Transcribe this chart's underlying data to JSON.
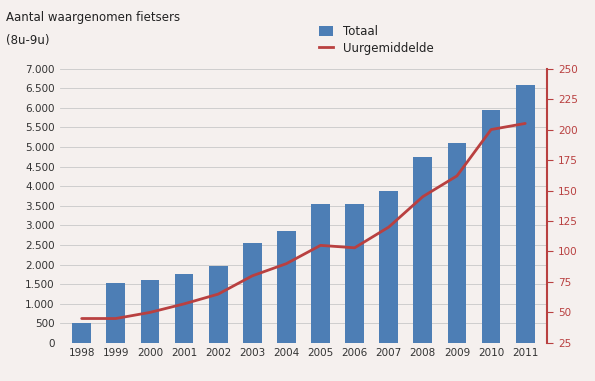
{
  "years": [
    1998,
    1999,
    2000,
    2001,
    2002,
    2003,
    2004,
    2005,
    2006,
    2007,
    2008,
    2009,
    2010,
    2011
  ],
  "totaal": [
    500,
    1530,
    1600,
    1750,
    1950,
    2550,
    2850,
    3550,
    3550,
    3880,
    4750,
    5100,
    5950,
    6580
  ],
  "uurgemiddelde": [
    45,
    45,
    50,
    57,
    65,
    80,
    90,
    105,
    103,
    120,
    145,
    162,
    200,
    205
  ],
  "bar_color": "#4d7eb5",
  "line_color": "#b94040",
  "bg_color": "#f5f0ee",
  "title_line1": "Aantal waargenomen fietsers",
  "title_line2": "(8u-9u)",
  "legend_totaal": "Totaal",
  "legend_uur": "Uurgemiddelde",
  "ylim_left": [
    0,
    7000
  ],
  "ylim_right": [
    25,
    250
  ],
  "yticks_left": [
    0,
    500,
    1000,
    1500,
    2000,
    2500,
    3000,
    3500,
    4000,
    4500,
    5000,
    5500,
    6000,
    6500,
    7000
  ],
  "yticks_right": [
    25,
    50,
    75,
    100,
    125,
    150,
    175,
    200,
    225,
    250
  ],
  "title_fontsize": 8.5,
  "tick_fontsize": 7.5,
  "legend_fontsize": 8.5
}
